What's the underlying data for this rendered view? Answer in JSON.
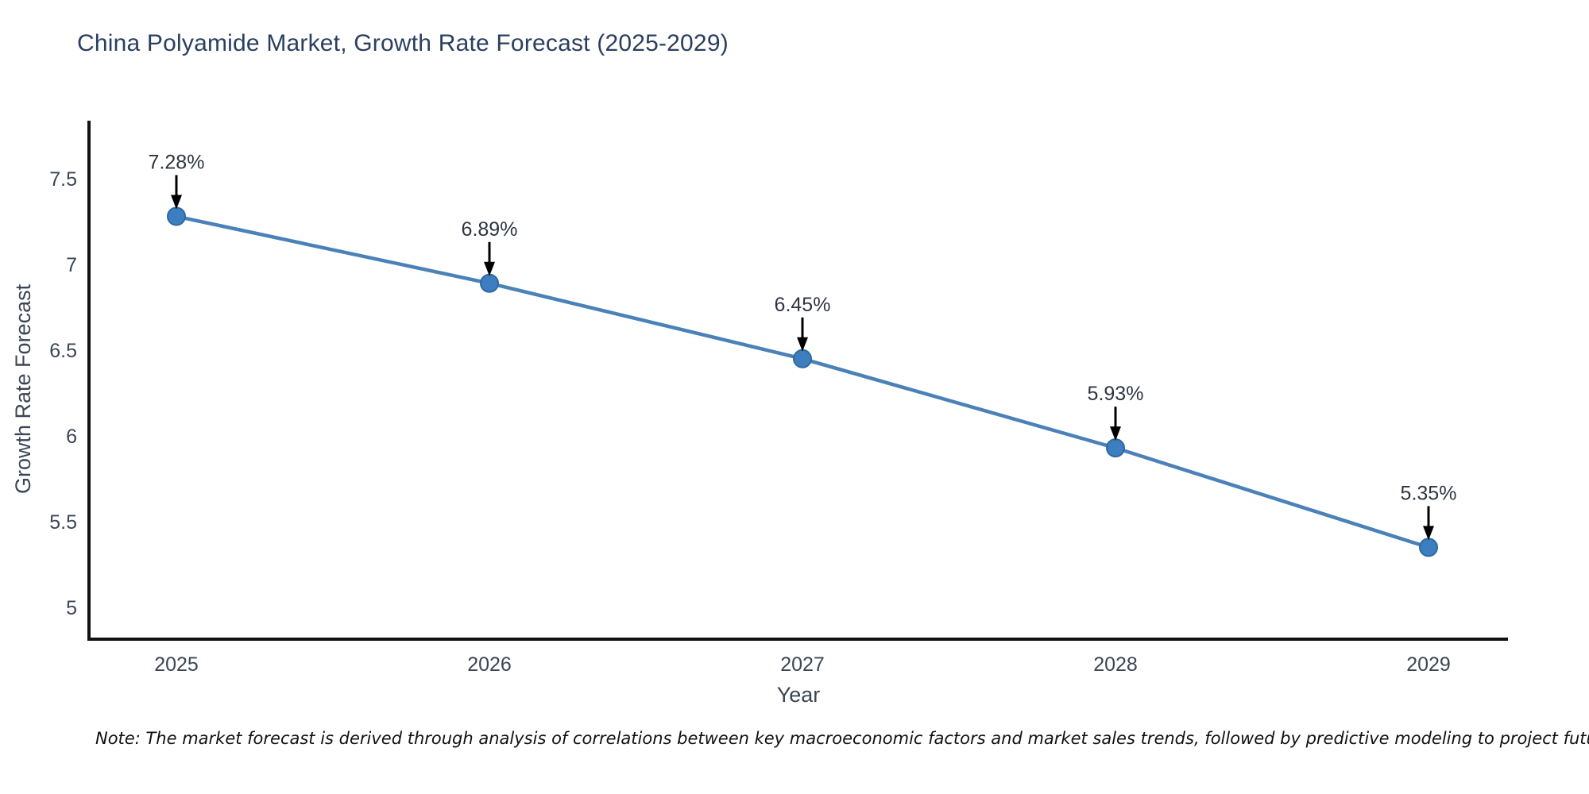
{
  "title": "China Polyamide Market, Growth Rate Forecast (2025-2029)",
  "note": "Note: The market forecast is derived through analysis of correlations between key macroeconomic factors and market sales trends, followed by predictive modeling to project future sales",
  "chart_data": {
    "type": "line",
    "title": "China Polyamide Market, Growth Rate Forecast (2025-2029)",
    "categories": [
      "2025",
      "2026",
      "2027",
      "2028",
      "2029"
    ],
    "series": [
      {
        "name": "Growth Rate Forecast",
        "values": [
          7.28,
          6.89,
          6.45,
          5.93,
          5.35
        ]
      }
    ],
    "point_labels": [
      "7.28%",
      "6.89%",
      "6.45%",
      "5.93%",
      "5.35%"
    ],
    "xlabel": "Year",
    "ylabel": "Growth Rate Forecast",
    "yticks": [
      7.5,
      7,
      6.5,
      6,
      5.5,
      5
    ],
    "ylim": [
      4.8,
      7.8
    ],
    "grid": false,
    "legend": false,
    "annotation_style": "value label with downward black arrow to each marker",
    "colors": {
      "line": "#4a81b8",
      "marker": "#3d7ec0",
      "marker_edge": "#2f699f",
      "annotation_arrow": "#000000",
      "annotation_text": "#2e3540",
      "axis": "#111111",
      "tick_text": "#3b4554",
      "title_text": "#2a3f5f"
    }
  }
}
